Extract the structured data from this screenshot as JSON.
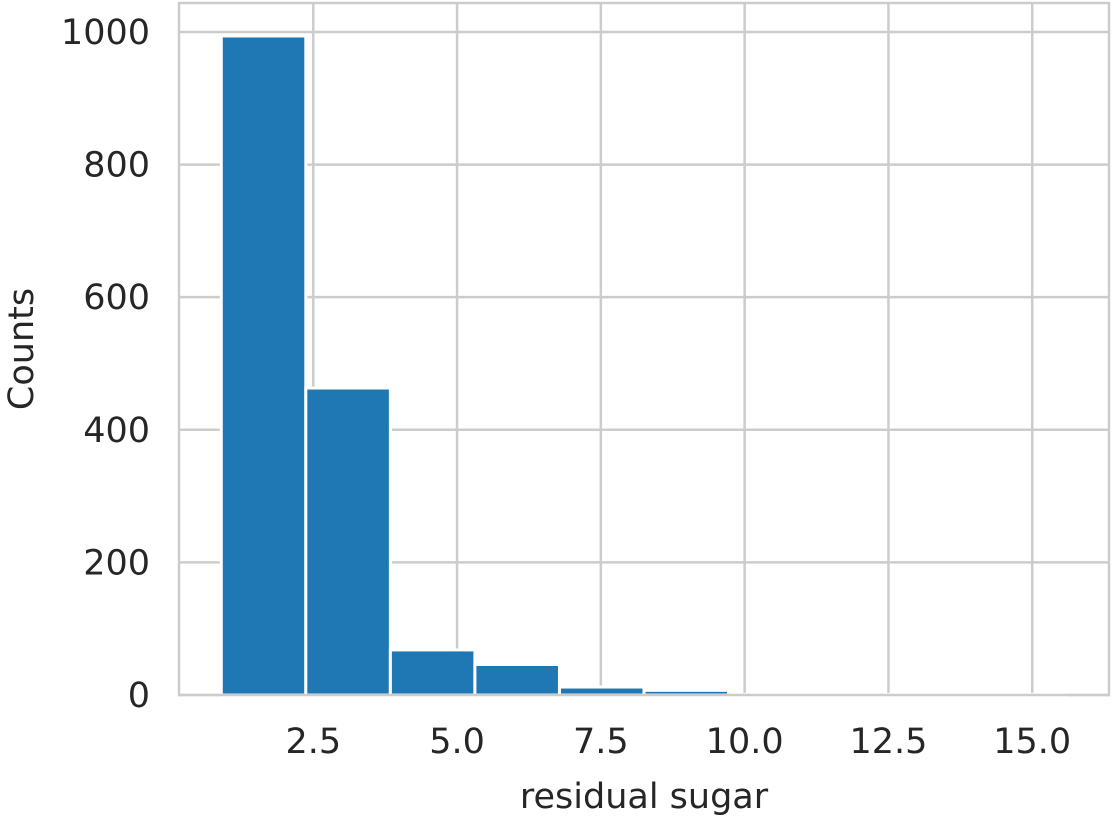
{
  "chart_data": {
    "type": "bar",
    "title": "",
    "xlabel": "residual sugar",
    "ylabel": "Counts",
    "bins": [
      {
        "x0": 0.9,
        "x1": 2.37,
        "count": 994
      },
      {
        "x0": 2.37,
        "x1": 3.84,
        "count": 463
      },
      {
        "x0": 3.84,
        "x1": 5.31,
        "count": 68
      },
      {
        "x0": 5.31,
        "x1": 6.78,
        "count": 46
      },
      {
        "x0": 6.78,
        "x1": 8.25,
        "count": 12
      },
      {
        "x0": 8.25,
        "x1": 9.72,
        "count": 7
      },
      {
        "x0": 9.72,
        "x1": 11.19,
        "count": 1
      },
      {
        "x0": 11.19,
        "x1": 12.66,
        "count": 1
      },
      {
        "x0": 12.66,
        "x1": 14.13,
        "count": 2
      },
      {
        "x0": 14.13,
        "x1": 15.6,
        "count": 1
      }
    ],
    "xlim": [
      0.165,
      16.335
    ],
    "ylim": [
      0,
      1043.7
    ],
    "xticks": [
      2.5,
      5.0,
      7.5,
      10.0,
      12.5,
      15.0
    ],
    "xtick_labels": [
      "2.5",
      "5.0",
      "7.5",
      "10.0",
      "12.5",
      "15.0"
    ],
    "yticks": [
      0,
      200,
      400,
      600,
      800,
      1000
    ],
    "ytick_labels": [
      "0",
      "200",
      "400",
      "600",
      "800",
      "1000"
    ],
    "grid": true,
    "bar_color": "#1f77b4",
    "bar_edge_color": "#ffffff",
    "grid_color": "#cccccc",
    "text_color": "#262626"
  }
}
